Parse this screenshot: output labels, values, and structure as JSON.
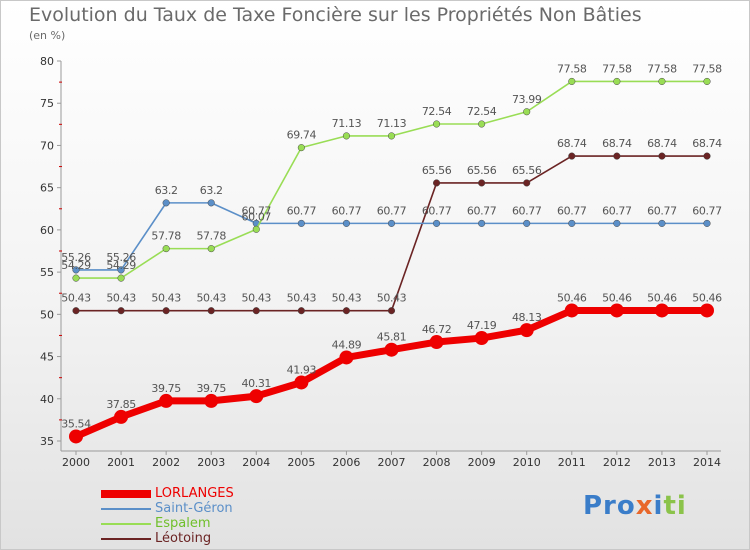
{
  "title": "Evolution du Taux de Taxe Foncière sur les Propriétés Non Bâties",
  "subtitle": "(en %)",
  "logo_text": "Proxiti",
  "colors": {
    "axis": "#9a9a9a",
    "grid_tick": "#cc0000",
    "title": "#6a6a6a"
  },
  "chart_data": {
    "type": "line",
    "x": [
      2000,
      2001,
      2002,
      2003,
      2004,
      2005,
      2006,
      2007,
      2008,
      2009,
      2010,
      2011,
      2012,
      2013,
      2014
    ],
    "ylim": [
      35,
      80
    ],
    "yticks": [
      35,
      40,
      45,
      50,
      55,
      60,
      65,
      70,
      75,
      80
    ],
    "legend_position": "bottom-left",
    "grid": false,
    "series": [
      {
        "name": "LORLANGES",
        "color": "#ee0000",
        "values": [
          35.54,
          37.85,
          39.75,
          39.75,
          40.31,
          41.93,
          44.89,
          45.81,
          46.72,
          47.19,
          48.13,
          50.46,
          50.46,
          50.46,
          50.46
        ],
        "labels": [
          "35.54",
          "37.85",
          "39.75",
          "39.75",
          "40.31",
          "41.93",
          "44.89",
          "45.81",
          "46.72",
          "47.19",
          "48.13",
          "50.46",
          "50.46",
          "50.46",
          "50.46"
        ]
      },
      {
        "name": "Saint-Géron",
        "color": "#5b8fc8",
        "values": [
          55.26,
          55.26,
          63.2,
          63.2,
          60.77,
          60.77,
          60.77,
          60.77,
          60.77,
          60.77,
          60.77,
          60.77,
          60.77,
          60.77,
          60.77
        ],
        "labels": [
          "55.26",
          "55.26",
          "63.2",
          "63.2",
          "60.77",
          "60.77",
          "60.77",
          "60.77",
          "60.77",
          "60.77",
          "60.77",
          "60.77",
          "60.77",
          "60.77",
          "60.77"
        ]
      },
      {
        "name": "Espalem",
        "color": "#99dd55",
        "values": [
          54.29,
          54.29,
          57.78,
          57.78,
          60.07,
          69.74,
          71.13,
          71.13,
          72.54,
          72.54,
          73.99,
          77.58,
          77.58,
          77.58,
          77.58
        ],
        "labels": [
          "54.29",
          "54.29",
          "57.78",
          "57.78",
          "60.07",
          "69.74",
          "71.13",
          "71.13",
          "72.54",
          "72.54",
          "73.99",
          "77.58",
          "77.58",
          "77.58",
          "77.58"
        ]
      },
      {
        "name": "Léotoing",
        "color": "#6b2424",
        "values": [
          50.43,
          50.43,
          50.43,
          50.43,
          50.43,
          50.43,
          50.43,
          50.43,
          65.56,
          65.56,
          65.56,
          68.74,
          68.74,
          68.74,
          68.74
        ],
        "labels": [
          "50.43",
          "50.43",
          "50.43",
          "50.43",
          "50.43",
          "50.43",
          "50.43",
          "50.43",
          "65.56",
          "65.56",
          "65.56",
          "68.74",
          "68.74",
          "68.74",
          "68.74"
        ]
      }
    ]
  }
}
